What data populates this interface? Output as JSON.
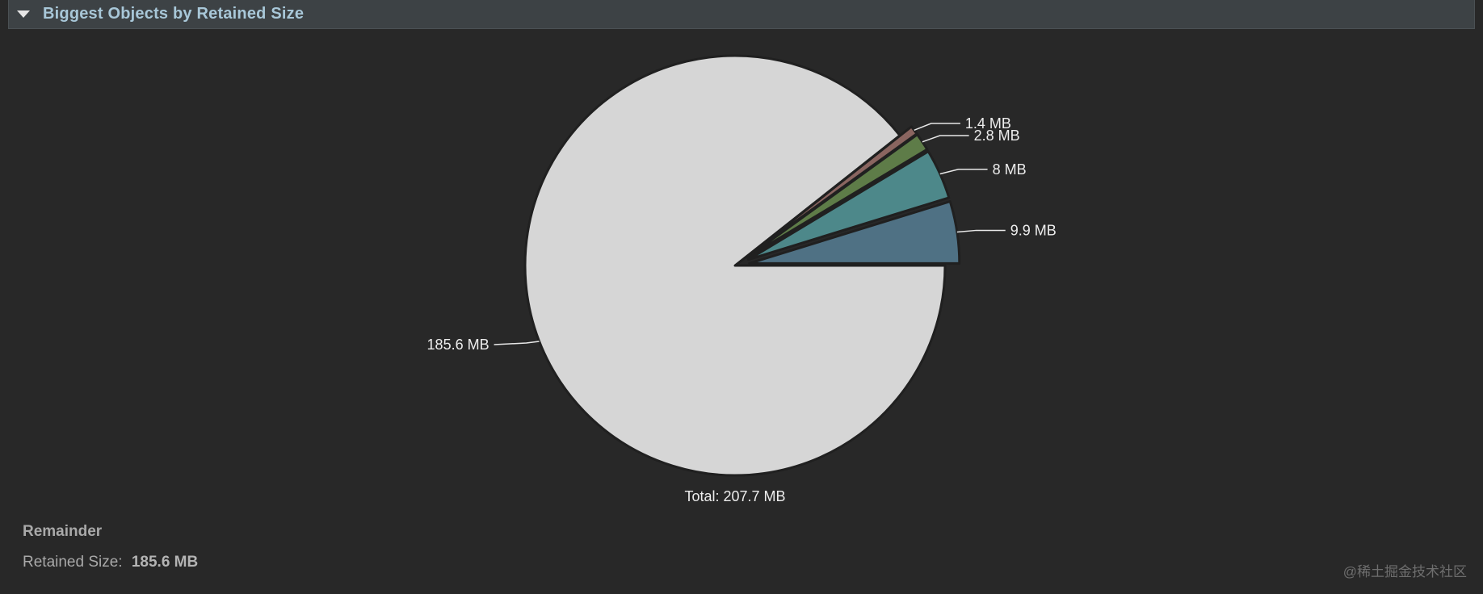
{
  "header": {
    "title": "Biggest Objects by Retained Size"
  },
  "chart_data": {
    "type": "pie",
    "unit": "MB",
    "total_label": "Total: 207.7 MB",
    "slices": [
      {
        "value": 9.9,
        "label": "9.9 MB",
        "color": "#4f7184"
      },
      {
        "value": 8,
        "label": "8 MB",
        "color": "#4d888a"
      },
      {
        "value": 2.8,
        "label": "2.8 MB",
        "color": "#5e7c48"
      },
      {
        "value": 1.4,
        "label": "1.4 MB",
        "color": "#8a6560"
      },
      {
        "value": 185.6,
        "label": "185.6 MB",
        "color": "#d6d6d6"
      }
    ]
  },
  "details": {
    "selected_name": "Remainder",
    "retained_size_label": "Retained Size:",
    "retained_size_value": "185.6 MB"
  },
  "watermark": "@稀土掘金技术社区"
}
